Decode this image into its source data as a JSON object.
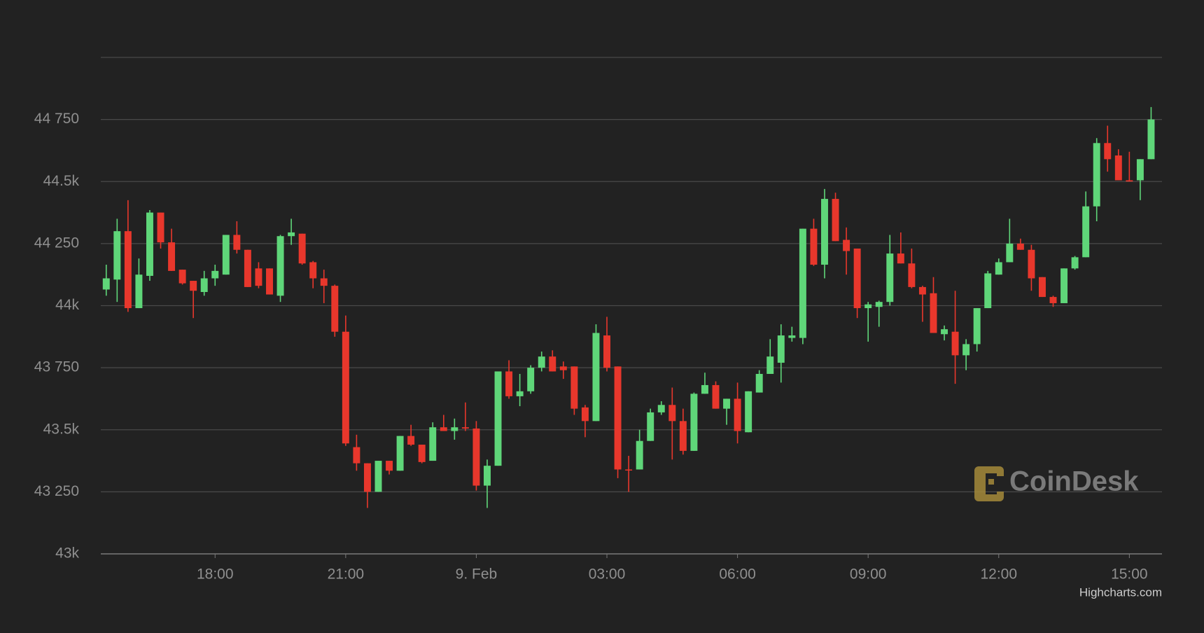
{
  "chart_data": {
    "type": "candlestick",
    "x": [
      15.5,
      15.75,
      16,
      16.25,
      16.5,
      16.75,
      17,
      17.25,
      17.5,
      17.75,
      18,
      18.25,
      18.5,
      18.75,
      19,
      19.25,
      19.5,
      19.75,
      20,
      20.25,
      20.5,
      20.75,
      21,
      21.25,
      21.5,
      21.75,
      22,
      22.25,
      22.5,
      22.75,
      23,
      23.25,
      23.5,
      23.75,
      24,
      24.25,
      24.5,
      24.75,
      25,
      25.25,
      25.5,
      25.75,
      26,
      26.25,
      26.5,
      26.75,
      27,
      27.25,
      27.5,
      27.75,
      28,
      28.25,
      28.5,
      28.75,
      29,
      29.25,
      29.5,
      29.75,
      30,
      30.25,
      30.5,
      30.75,
      31,
      31.25,
      31.5,
      31.75,
      32,
      32.25,
      32.5,
      32.75,
      33,
      33.25,
      33.5,
      33.75,
      34,
      34.25,
      34.5,
      34.75,
      35,
      35.25,
      35.5,
      35.75,
      36,
      36.25,
      36.5,
      36.75,
      37,
      37.25,
      37.5,
      37.75,
      38,
      38.25,
      38.5,
      38.75,
      39,
      39.25,
      39.5
    ],
    "open": [
      44065,
      44105,
      44300,
      43990,
      44120,
      44375,
      44255,
      44145,
      44100,
      44055,
      44110,
      44125,
      44285,
      44225,
      44150,
      44150,
      44040,
      44280,
      44290,
      44175,
      44110,
      44080,
      43895,
      43430,
      43365,
      43250,
      43375,
      43335,
      43475,
      43440,
      43375,
      43510,
      43495,
      43510,
      43505,
      43275,
      43355,
      43735,
      43635,
      43655,
      43750,
      43795,
      43755,
      43755,
      43590,
      43535,
      43880,
      43755,
      43340,
      43340,
      43455,
      43570,
      43600,
      43535,
      43415,
      43645,
      43680,
      43585,
      43625,
      43490,
      43650,
      43725,
      43770,
      43870,
      43870,
      44310,
      44165,
      44430,
      44265,
      44230,
      43990,
      43995,
      44015,
      44210,
      44170,
      44075,
      44050,
      43885,
      43895,
      43800,
      43845,
      43990,
      44125,
      44175,
      44250,
      44225,
      44115,
      44035,
      44010,
      44150,
      44195,
      44400,
      44655,
      44605,
      44505,
      44505,
      44590
    ],
    "high": [
      44165,
      44350,
      44425,
      44190,
      44385,
      44375,
      44310,
      44145,
      44100,
      44140,
      44165,
      44285,
      44340,
      44225,
      44175,
      44150,
      44285,
      44350,
      44290,
      44180,
      44145,
      44085,
      43960,
      43480,
      43365,
      43375,
      43375,
      43475,
      43520,
      43440,
      43530,
      43560,
      43545,
      43610,
      43535,
      43380,
      43735,
      43780,
      43725,
      43760,
      43815,
      43820,
      43775,
      43755,
      43600,
      43925,
      43955,
      43755,
      43395,
      43500,
      43585,
      43615,
      43670,
      43585,
      43650,
      43730,
      43695,
      43625,
      43690,
      43655,
      43740,
      43865,
      43925,
      43915,
      44310,
      44350,
      44470,
      44455,
      44315,
      44230,
      44015,
      44020,
      44285,
      44295,
      44230,
      44080,
      44115,
      43920,
      44060,
      43865,
      43990,
      44140,
      44190,
      44350,
      44270,
      44245,
      44115,
      44040,
      44150,
      44200,
      44460,
      44675,
      44725,
      44630,
      44620,
      44590,
      44800
    ],
    "low": [
      44040,
      44015,
      43975,
      43990,
      44100,
      44230,
      44140,
      44085,
      43950,
      44040,
      44080,
      44125,
      44210,
      44075,
      44070,
      44045,
      44015,
      44245,
      44165,
      44070,
      44010,
      43875,
      43435,
      43335,
      43185,
      43250,
      43320,
      43335,
      43435,
      43365,
      43375,
      43495,
      43460,
      43495,
      43255,
      43185,
      43355,
      43625,
      43595,
      43645,
      43735,
      43735,
      43705,
      43560,
      43470,
      43535,
      43735,
      43305,
      43250,
      43340,
      43455,
      43560,
      43380,
      43400,
      43415,
      43645,
      43585,
      43520,
      43445,
      43490,
      43650,
      43725,
      43690,
      43855,
      43845,
      44160,
      44110,
      44260,
      44125,
      43950,
      43855,
      43915,
      44000,
      44170,
      44070,
      43935,
      43890,
      43860,
      43685,
      43740,
      43815,
      43990,
      44125,
      44175,
      44225,
      44060,
      44035,
      43995,
      44010,
      44145,
      44195,
      44340,
      44540,
      44505,
      44500,
      44425,
      44590
    ],
    "close": [
      44110,
      44300,
      43990,
      44125,
      44375,
      44255,
      44140,
      44090,
      44060,
      44110,
      44140,
      44285,
      44225,
      44075,
      44080,
      44045,
      44280,
      44295,
      44170,
      44110,
      44080,
      43895,
      43445,
      43365,
      43250,
      43375,
      43335,
      43475,
      43440,
      43370,
      43510,
      43495,
      43510,
      43505,
      43275,
      43355,
      43735,
      43635,
      43655,
      43750,
      43795,
      43735,
      43740,
      43585,
      43535,
      43890,
      43750,
      43340,
      43340,
      43455,
      43570,
      43600,
      43535,
      43415,
      43645,
      43680,
      43585,
      43625,
      43495,
      43655,
      43725,
      43795,
      43880,
      43880,
      44310,
      44165,
      44430,
      44260,
      44220,
      43990,
      44005,
      44015,
      44210,
      44170,
      44075,
      44045,
      43890,
      43905,
      43800,
      43845,
      43990,
      44130,
      44175,
      44250,
      44225,
      44110,
      44035,
      44010,
      44150,
      44195,
      44400,
      44655,
      44590,
      44505,
      44500,
      44590,
      44750
    ],
    "up_color": "#5fd679",
    "down_color": "#e8372c",
    "xlim": [
      15.375,
      39.75
    ],
    "xticks": [
      {
        "value": 18,
        "label": "18:00"
      },
      {
        "value": 21,
        "label": "21:00"
      },
      {
        "value": 24,
        "label": "9. Feb"
      },
      {
        "value": 27,
        "label": "03:00"
      },
      {
        "value": 30,
        "label": "06:00"
      },
      {
        "value": 33,
        "label": "09:00"
      },
      {
        "value": 36,
        "label": "12:00"
      },
      {
        "value": 39,
        "label": "15:00"
      }
    ],
    "ylim": [
      43000,
      45000
    ],
    "yticks": [
      {
        "value": 43000,
        "label": "43k"
      },
      {
        "value": 43250,
        "label": "43 250"
      },
      {
        "value": 43500,
        "label": "43.5k"
      },
      {
        "value": 43750,
        "label": "43 750"
      },
      {
        "value": 44000,
        "label": "44k"
      },
      {
        "value": 44250,
        "label": "44 250"
      },
      {
        "value": 44500,
        "label": "44.5k"
      },
      {
        "value": 44750,
        "label": "44 750"
      }
    ],
    "grid": true,
    "watermark": "CoinDesk",
    "credits": "Highcharts.com"
  }
}
